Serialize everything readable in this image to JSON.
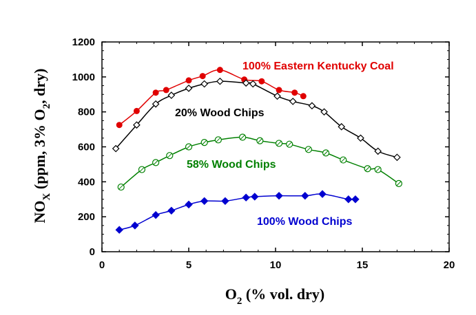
{
  "chart_data": {
    "type": "line",
    "xlabel": "O",
    "xlabel_sub": "2",
    "xlabel_rest": " (% vol. dry)",
    "ylabel_parts": [
      "NO",
      "X",
      " (ppm, 3% O",
      "2",
      ", dry)"
    ],
    "xlim": [
      0,
      20
    ],
    "ylim": [
      0,
      1200
    ],
    "xticks": [
      0,
      5,
      10,
      15,
      20
    ],
    "yticks": [
      0,
      200,
      400,
      600,
      800,
      1000,
      1200
    ],
    "grid": false,
    "series": [
      {
        "name": "100% Eastern Kentucky Coal",
        "color": "#e00000",
        "marker": "filled-circle",
        "x": [
          1.0,
          2.0,
          3.1,
          3.7,
          5.0,
          5.8,
          6.8,
          8.2,
          9.2,
          10.2,
          11.1,
          11.6
        ],
        "y": [
          725,
          805,
          910,
          925,
          980,
          1005,
          1040,
          985,
          975,
          925,
          910,
          890
        ]
      },
      {
        "name": "20% Wood Chips",
        "color": "#000000",
        "marker": "open-diamond",
        "x": [
          0.8,
          2.0,
          3.1,
          4.0,
          5.0,
          5.9,
          6.8,
          8.3,
          8.7,
          10.1,
          11.0,
          12.1,
          12.8,
          13.8,
          14.9,
          15.9,
          17.0
        ],
        "y": [
          590,
          725,
          845,
          895,
          935,
          960,
          975,
          965,
          960,
          890,
          860,
          835,
          800,
          715,
          650,
          575,
          540
        ]
      },
      {
        "name": "58% Wood Chips",
        "color": "#008000",
        "marker": "open-circle",
        "x": [
          1.1,
          2.3,
          3.1,
          3.9,
          5.0,
          5.9,
          6.7,
          8.1,
          9.1,
          10.2,
          10.8,
          11.9,
          12.9,
          13.9,
          15.3,
          15.9,
          17.1
        ],
        "y": [
          370,
          470,
          510,
          550,
          600,
          625,
          640,
          655,
          635,
          620,
          615,
          585,
          565,
          525,
          475,
          470,
          390
        ]
      },
      {
        "name": "100% Wood Chips",
        "color": "#0000d0",
        "marker": "filled-diamond",
        "x": [
          1.0,
          1.9,
          3.1,
          4.0,
          5.0,
          5.9,
          7.1,
          8.3,
          8.8,
          10.2,
          11.7,
          12.7,
          14.2,
          14.6
        ],
        "y": [
          125,
          150,
          210,
          235,
          270,
          290,
          290,
          310,
          315,
          320,
          320,
          330,
          300,
          300
        ]
      }
    ]
  }
}
